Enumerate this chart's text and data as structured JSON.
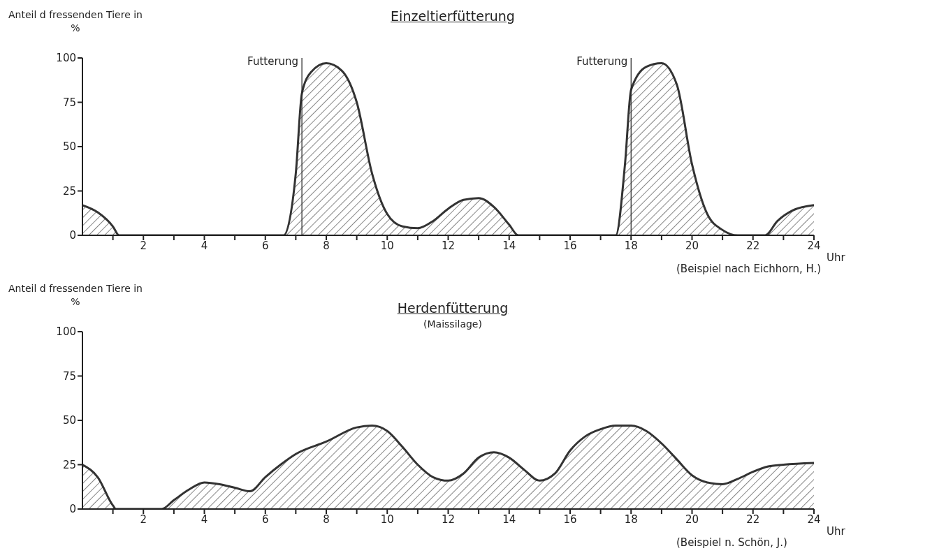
{
  "chart_data": [
    {
      "type": "area",
      "title": "Einzeltierfütterung",
      "ylabel": "Anteil d fressenden Tiere in %",
      "xlabel": "Uhr",
      "color": "#333333",
      "x": [
        0,
        0.5,
        1,
        1.2,
        2,
        4,
        6,
        6.6,
        7,
        7.2,
        7.5,
        8,
        8.5,
        9,
        9.5,
        10,
        10.5,
        11,
        11.5,
        12,
        12.5,
        13,
        13.5,
        14,
        14.3,
        16,
        17.5,
        17.8,
        18,
        18.5,
        19,
        19.5,
        20,
        20.5,
        21,
        21.5,
        22.4,
        22.8,
        23.3,
        24
      ],
      "values": [
        17,
        13,
        5,
        0,
        0,
        0,
        0,
        0,
        35,
        80,
        92,
        97,
        93,
        75,
        35,
        12,
        5,
        4,
        8,
        15,
        20,
        21,
        16,
        6,
        0,
        0,
        0,
        40,
        82,
        95,
        97,
        85,
        40,
        12,
        3,
        0,
        0,
        8,
        14,
        17
      ],
      "xlim": [
        0,
        24
      ],
      "ylim": [
        0,
        100
      ],
      "yticks": [
        0,
        25,
        50,
        75,
        100
      ],
      "xticks": [
        {
          "value": 1,
          "label": null
        },
        2,
        {
          "value": 3,
          "label": null
        },
        4,
        {
          "value": 5,
          "label": null
        },
        6,
        {
          "value": 7,
          "label": null
        },
        8,
        {
          "value": 9,
          "label": null
        },
        10,
        {
          "value": 11,
          "label": null
        },
        12,
        {
          "value": 13,
          "label": null
        },
        14,
        {
          "value": 15,
          "label": null
        },
        16,
        {
          "value": 17,
          "label": null
        },
        18,
        {
          "value": 19,
          "label": null
        },
        20,
        {
          "value": 21,
          "label": null
        },
        22,
        {
          "value": 23,
          "label": null
        },
        24
      ],
      "ref_lines": [
        {
          "axis": "x",
          "value": 7.2,
          "label": "Futterung"
        },
        {
          "axis": "x",
          "value": 18,
          "label": "Futterung"
        }
      ],
      "annotations": [
        "(Beispiel nach Eichhorn, H.)"
      ]
    },
    {
      "type": "area",
      "title": "Herdenfütterung",
      "subtitle": "(Maissilage)",
      "ylabel": "Anteil d fressenden Tiere in %",
      "xlabel": "Uhr",
      "color": "#333333",
      "x": [
        0,
        0.5,
        1,
        1.1,
        2,
        2.6,
        3,
        3.5,
        4,
        4.5,
        5,
        5.5,
        6,
        6.5,
        7,
        8,
        9,
        9.5,
        10,
        10.5,
        11,
        11.5,
        12,
        12.5,
        13,
        13.5,
        14,
        14.5,
        15,
        15.5,
        16,
        16.5,
        17,
        17.5,
        18,
        18.5,
        19,
        19.5,
        20,
        20.5,
        21,
        21.5,
        22,
        22.5,
        23,
        24
      ],
      "values": [
        25,
        18,
        2,
        0,
        0,
        0,
        5,
        11,
        15,
        14,
        12,
        10,
        18,
        25,
        31,
        38,
        46,
        47,
        44,
        35,
        25,
        18,
        16,
        20,
        29,
        32,
        29,
        22,
        16,
        20,
        33,
        41,
        45,
        47,
        47,
        44,
        37,
        28,
        19,
        15,
        14,
        17,
        21,
        24,
        25,
        26
      ],
      "xlim": [
        0,
        24
      ],
      "ylim": [
        0,
        100
      ],
      "yticks": [
        0,
        25,
        50,
        75,
        100
      ],
      "xticks": [
        {
          "value": 1,
          "label": null
        },
        2,
        {
          "value": 3,
          "label": null
        },
        4,
        {
          "value": 5,
          "label": null
        },
        6,
        {
          "value": 7,
          "label": null
        },
        8,
        {
          "value": 9,
          "label": null
        },
        10,
        {
          "value": 11,
          "label": null
        },
        12,
        {
          "value": 13,
          "label": null
        },
        14,
        {
          "value": 15,
          "label": null
        },
        16,
        {
          "value": 17,
          "label": null
        },
        18,
        {
          "value": 19,
          "label": null
        },
        20,
        {
          "value": 21,
          "label": null
        },
        22,
        {
          "value": 23,
          "label": null
        },
        24
      ],
      "annotations": [
        "(Beispiel n. Schön, J.)"
      ]
    }
  ]
}
